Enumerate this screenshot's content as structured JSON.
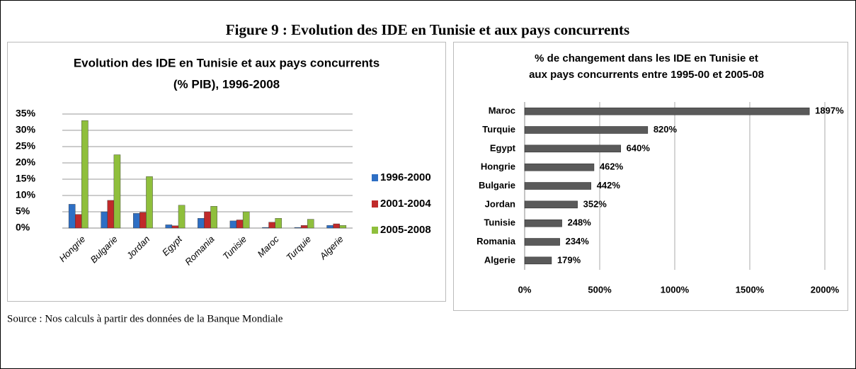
{
  "title": "Figure 9 : Evolution des IDE en Tunisie et aux pays concurrents",
  "source": "Source : Nos calculs à partir des données de la Banque Mondiale",
  "chart_data": [
    {
      "type": "grouped_bar",
      "title": [
        "Evolution des IDE en Tunisie et aux pays concurrents",
        "(% PIB), 1996-2008"
      ],
      "categories": [
        "Hongrie",
        "Bulgarie",
        "Jordan",
        "Egypt",
        "Romania",
        "Tunisie",
        "Maroc",
        "Turquie",
        "Algerie"
      ],
      "series": [
        {
          "name": "1996-2000",
          "color": "#2e6fc4",
          "values": [
            7.3,
            5,
            4.5,
            1,
            3,
            2.2,
            0.2,
            0.2,
            0.8
          ]
        },
        {
          "name": "2001-2004",
          "color": "#c02a2a",
          "values": [
            4.2,
            8.5,
            4.8,
            0.7,
            5,
            2.5,
            1.8,
            0.8,
            1.3
          ]
        },
        {
          "name": "2005-2008",
          "color": "#8fbf3c",
          "values": [
            33,
            22.5,
            15.8,
            7,
            6.7,
            5,
            3,
            2.7,
            0.8
          ]
        }
      ],
      "ylim": [
        0,
        35
      ],
      "yticks": [
        {
          "value": 0,
          "label": "0%"
        },
        {
          "value": 5,
          "label": "5%"
        },
        {
          "value": 10,
          "label": "10%"
        },
        {
          "value": 15,
          "label": "15%"
        },
        {
          "value": 20,
          "label": "20%"
        },
        {
          "value": 25,
          "label": "25%"
        },
        {
          "value": 30,
          "label": "30%"
        },
        {
          "value": 35,
          "label": "35%"
        }
      ],
      "grid": true,
      "legend": "right"
    },
    {
      "type": "horizontal_bar",
      "title": [
        "% de changement dans les IDE en Tunisie et",
        "aux pays concurrents entre 1995-00 et 2005-08"
      ],
      "categories": [
        "Maroc",
        "Turquie",
        "Egypt",
        "Hongrie",
        "Bulgarie",
        "Jordan",
        "Tunisie",
        "Romania",
        "Algerie"
      ],
      "values": [
        1897,
        820,
        640,
        462,
        442,
        352,
        248,
        234,
        179
      ],
      "value_labels": [
        "1897%",
        "820%",
        "640%",
        "462%",
        "442%",
        "352%",
        "248%",
        "234%",
        "179%"
      ],
      "color": "#5a5a5a",
      "xlim": [
        0,
        2000
      ],
      "xticks": [
        {
          "value": 0,
          "label": "0%"
        },
        {
          "value": 500,
          "label": "500%"
        },
        {
          "value": 1000,
          "label": "1000%"
        },
        {
          "value": 1500,
          "label": "1500%"
        },
        {
          "value": 2000,
          "label": "2000%"
        }
      ],
      "grid": true
    }
  ]
}
